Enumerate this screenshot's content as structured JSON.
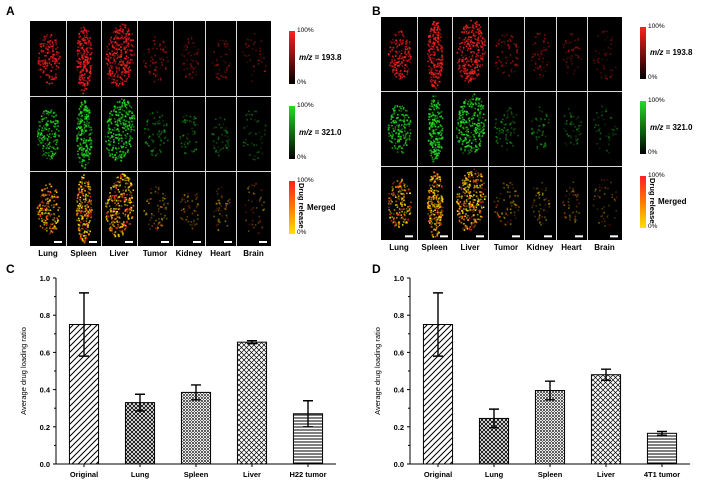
{
  "panels": {
    "A": {
      "letter": "A",
      "organs": [
        "Lung",
        "Spleen",
        "Liver",
        "Tumor",
        "Kidney",
        "Heart",
        "Brain"
      ],
      "rows": [
        {
          "mz": "m/z = 193.8",
          "top": "100%",
          "bottom": "0%",
          "color": "red"
        },
        {
          "mz": "m/z = 321.0",
          "top": "100%",
          "bottom": "0%",
          "color": "green"
        },
        {
          "label": "Merged",
          "side": "Drug release",
          "top": "100%",
          "bottom": "0%",
          "color": "merged"
        }
      ]
    },
    "B": {
      "letter": "B",
      "organs": [
        "Lung",
        "Spleen",
        "Liver",
        "Tumor",
        "Kidney",
        "Heart",
        "Brain"
      ],
      "rows": [
        {
          "mz": "m/z = 193.8",
          "top": "100%",
          "bottom": "0%",
          "color": "red"
        },
        {
          "mz": "m/z = 321.0",
          "top": "100%",
          "bottom": "0%",
          "color": "green"
        },
        {
          "label": "Merged",
          "side": "Drug release",
          "top": "100%",
          "bottom": "0%",
          "color": "merged"
        }
      ]
    }
  },
  "colors": {
    "red": "#ff2020",
    "green": "#22dd22",
    "yellow": "#ffe000",
    "orange": "#ff7a00",
    "bar": "#000000"
  },
  "chart_data": [
    {
      "panel": "C",
      "type": "bar",
      "categories": [
        "Original",
        "Lung",
        "Spleen",
        "Liver",
        "H22 tumor"
      ],
      "values": [
        0.75,
        0.33,
        0.385,
        0.655,
        0.27
      ],
      "errors": [
        0.17,
        0.045,
        0.04,
        0.008,
        0.07
      ],
      "patterns": [
        "diag-back",
        "diag-cross",
        "crosshatch",
        "diag-fine-cross",
        "horizontal"
      ],
      "ylabel": "Average drug loading ratio",
      "ylim": [
        0.0,
        1.0
      ],
      "yticks": [
        "0.0",
        "0.2",
        "0.4",
        "0.6",
        "0.8",
        "1.0"
      ],
      "grid": false
    },
    {
      "panel": "D",
      "type": "bar",
      "categories": [
        "Original",
        "Lung",
        "Spleen",
        "Liver",
        "4T1 tumor"
      ],
      "values": [
        0.75,
        0.245,
        0.395,
        0.48,
        0.165
      ],
      "errors": [
        0.17,
        0.05,
        0.05,
        0.03,
        0.01
      ],
      "patterns": [
        "diag-back",
        "diag-cross",
        "crosshatch",
        "diag-fine-cross",
        "horizontal"
      ],
      "ylabel": "Average drug loading ratio",
      "ylim": [
        0.0,
        1.0
      ],
      "yticks": [
        "0.0",
        "0.2",
        "0.4",
        "0.6",
        "0.8",
        "1.0"
      ],
      "grid": false
    }
  ]
}
